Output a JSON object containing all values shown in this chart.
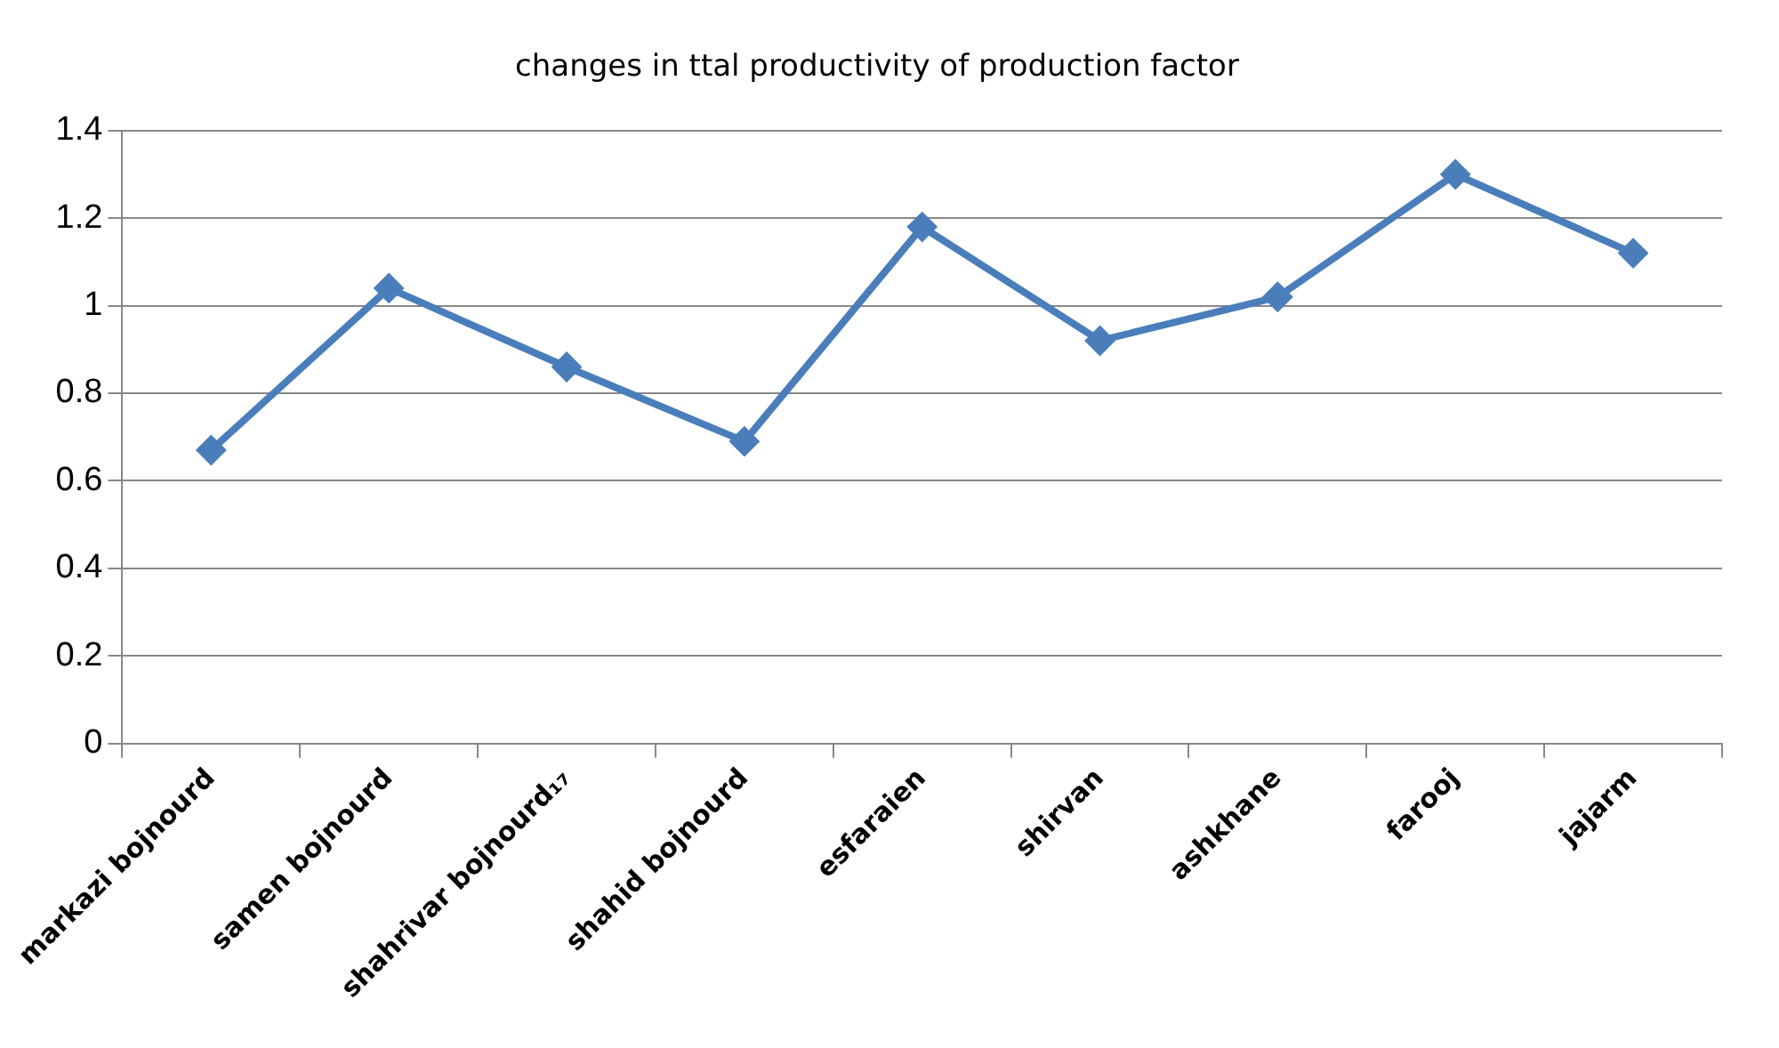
{
  "chart_data": {
    "type": "line",
    "title": "changes in ttal productivity of production factor",
    "categories": [
      "markazi bojnourd",
      "samen bojnourd",
      "shahrivar bojnourd₁₇",
      "shahid bojnourd",
      "esfaraien",
      "shirvan",
      "ashkhane",
      "farooj",
      "jajarm"
    ],
    "series": [
      {
        "color": "#4a7ebb",
        "values": [
          0.67,
          1.04,
          0.86,
          0.69,
          1.18,
          0.92,
          1.02,
          1.3,
          1.12
        ]
      }
    ],
    "ylim": [
      0,
      1.4
    ],
    "yticks": [
      0,
      0.2,
      0.4,
      0.6,
      0.8,
      1,
      1.2,
      1.4
    ],
    "grid": "y",
    "legend": false,
    "marker": "diamond",
    "line_style": "solid"
  }
}
